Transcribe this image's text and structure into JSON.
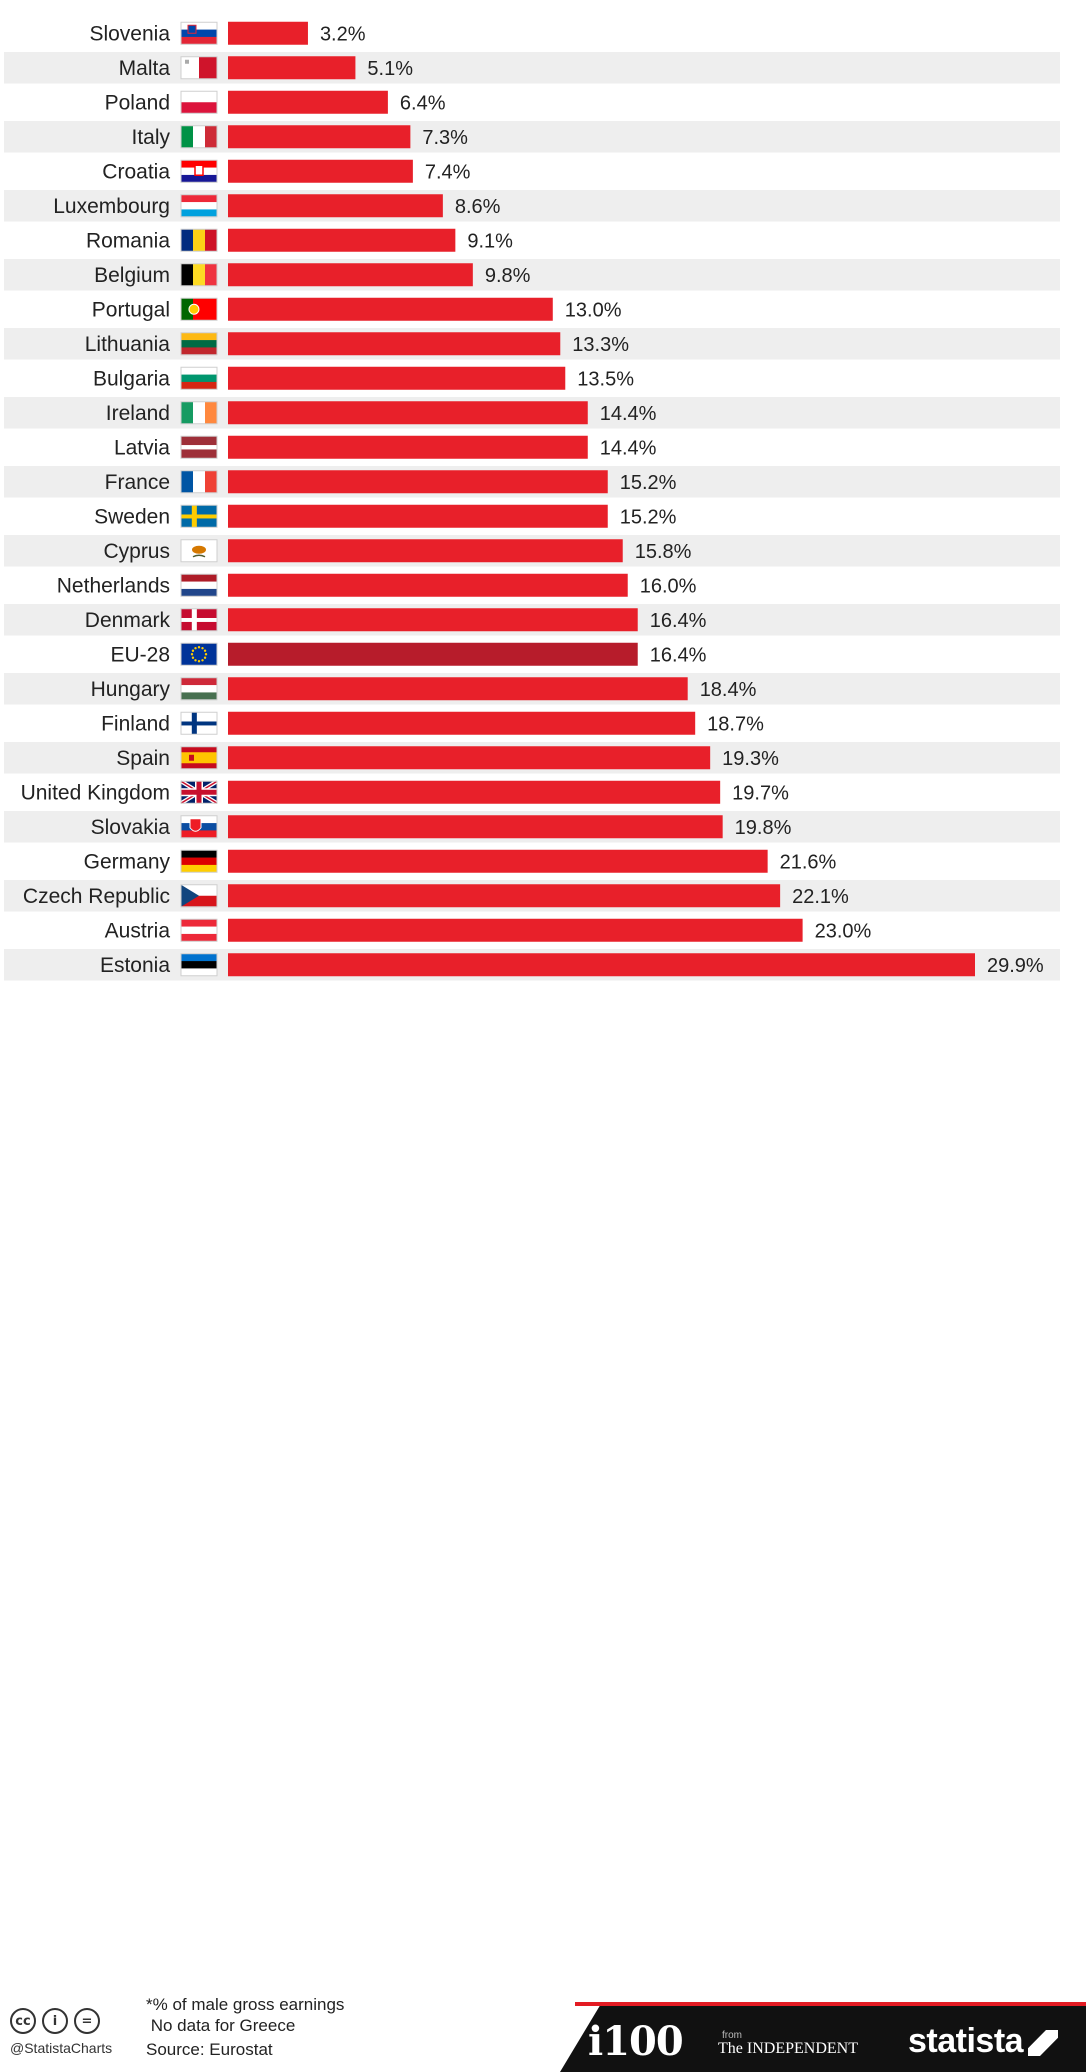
{
  "chart_data": {
    "type": "bar",
    "orientation": "horizontal",
    "categories": [
      "Slovenia",
      "Malta",
      "Poland",
      "Italy",
      "Croatia",
      "Luxembourg",
      "Romania",
      "Belgium",
      "Portugal",
      "Lithuania",
      "Bulgaria",
      "Ireland",
      "Latvia",
      "France",
      "Sweden",
      "Cyprus",
      "Netherlands",
      "Denmark",
      "EU-28",
      "Hungary",
      "Finland",
      "Spain",
      "United Kingdom",
      "Slovakia",
      "Germany",
      "Czech Republic",
      "Austria",
      "Estonia"
    ],
    "values": [
      3.2,
      5.1,
      6.4,
      7.3,
      7.4,
      8.6,
      9.1,
      9.8,
      13.0,
      13.3,
      13.5,
      14.4,
      14.4,
      15.2,
      15.2,
      15.8,
      16.0,
      16.4,
      16.4,
      18.4,
      18.7,
      19.3,
      19.7,
      19.8,
      21.6,
      22.1,
      23.0,
      29.9
    ],
    "value_labels": [
      "3.2%",
      "5.1%",
      "6.4%",
      "7.3%",
      "7.4%",
      "8.6%",
      "9.1%",
      "9.8%",
      "13.0%",
      "13.3%",
      "13.5%",
      "14.4%",
      "14.4%",
      "15.2%",
      "15.2%",
      "15.8%",
      "16.0%",
      "16.4%",
      "16.4%",
      "18.4%",
      "18.7%",
      "19.3%",
      "19.7%",
      "19.8%",
      "21.6%",
      "22.1%",
      "23.0%",
      "29.9%"
    ],
    "highlight": "EU-28",
    "xlim": [
      0,
      30
    ],
    "grid": false,
    "title": "",
    "xlabel": "",
    "ylabel": ""
  },
  "colors": {
    "bar": "#e8202a",
    "bar_highlight": "#b71c2b",
    "row_stripe": "#eeeeee"
  },
  "footer": {
    "note_line1": "*% of male gross earnings",
    "note_line2": " No data for Greece",
    "source": "Source: Eurostat",
    "handle": "@StatistaCharts",
    "cc_icons": [
      "cc-icon",
      "attribution-icon",
      "no-derivatives-icon"
    ],
    "cc_glyph_1": "cc",
    "cc_glyph_2": "i",
    "cc_glyph_3": "=",
    "logo_i100": "i100",
    "logo_from": "from",
    "logo_independent": "The INDEPENDENT",
    "logo_statista": "statista"
  }
}
